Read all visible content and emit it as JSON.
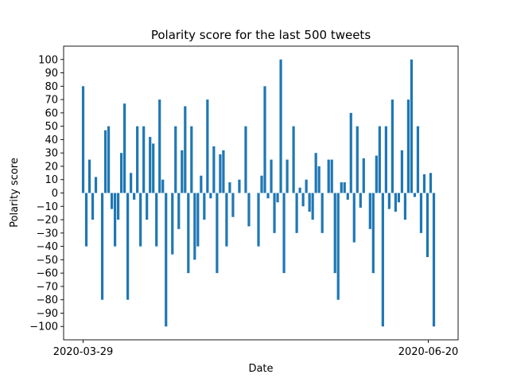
{
  "chart_data": {
    "type": "bar",
    "title": "Polarity score for the last 500 tweets",
    "xlabel": "Date",
    "ylabel": "Polarity score",
    "x_start": "2020-03-29",
    "x_end": "2020-06-20",
    "xticks": [
      "2020-03-29",
      "2020-06-20"
    ],
    "ylim": [
      -110,
      110
    ],
    "yticks": [
      -100,
      -90,
      -80,
      -70,
      -60,
      -50,
      -40,
      -30,
      -20,
      -10,
      0,
      10,
      20,
      30,
      40,
      50,
      60,
      70,
      80,
      90,
      100
    ],
    "grid": false,
    "bar_color": "#1f77b4",
    "values": [
      80,
      -40,
      25,
      -20,
      12,
      0,
      -80,
      47,
      50,
      -12,
      -40,
      -20,
      30,
      67,
      -80,
      15,
      -5,
      50,
      -40,
      50,
      -20,
      42,
      37,
      -40,
      70,
      10,
      -100,
      0,
      -46,
      50,
      -27,
      32,
      65,
      -60,
      50,
      -50,
      -40,
      13,
      -20,
      70,
      -4,
      35,
      -60,
      29,
      32,
      -40,
      8,
      -18,
      0,
      10,
      0,
      50,
      -25,
      0,
      0,
      -40,
      13,
      80,
      -4,
      25,
      -30,
      -7,
      100,
      -60,
      25,
      0,
      50,
      -30,
      4,
      -10,
      10,
      -14,
      -20,
      30,
      20,
      -30,
      0,
      25,
      25,
      -60,
      -80,
      8,
      8,
      -5,
      60,
      -37,
      50,
      -11,
      26,
      0,
      -27,
      -60,
      28,
      50,
      -100,
      50,
      -12,
      70,
      -14,
      -7,
      32,
      -20,
      70,
      100,
      -3,
      50,
      -30,
      14,
      -48,
      15,
      -100
    ]
  }
}
